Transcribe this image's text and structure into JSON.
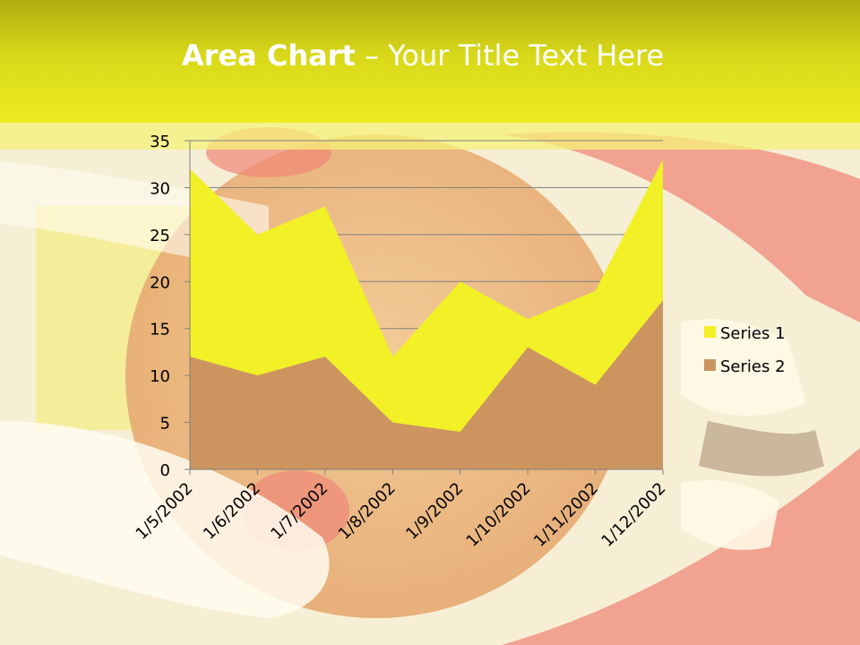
{
  "slide": {
    "title_bold": "Area Chart",
    "title_rest": " – Your Title Text Here"
  },
  "colors": {
    "header": "#eeec20",
    "series1": "#f2f026",
    "series2": "#cc9560",
    "grid": "#808080"
  },
  "chart_data": {
    "type": "area",
    "stacked": true,
    "title": "",
    "xlabel": "",
    "ylabel": "",
    "categories": [
      "1/5/2002",
      "1/6/2002",
      "1/7/2002",
      "1/8/2002",
      "1/9/2002",
      "1/10/2002",
      "1/11/2002",
      "1/12/2002"
    ],
    "series": [
      {
        "name": "Series 1",
        "values": [
          20,
          15,
          16,
          7,
          16,
          3,
          10,
          15
        ]
      },
      {
        "name": "Series 2",
        "values": [
          12,
          10,
          12,
          5,
          4,
          13,
          9,
          18
        ]
      }
    ],
    "ylim": [
      0,
      35
    ],
    "yticks": [
      0,
      5,
      10,
      15,
      20,
      25,
      30,
      35
    ],
    "grid": true,
    "legend": "right"
  }
}
